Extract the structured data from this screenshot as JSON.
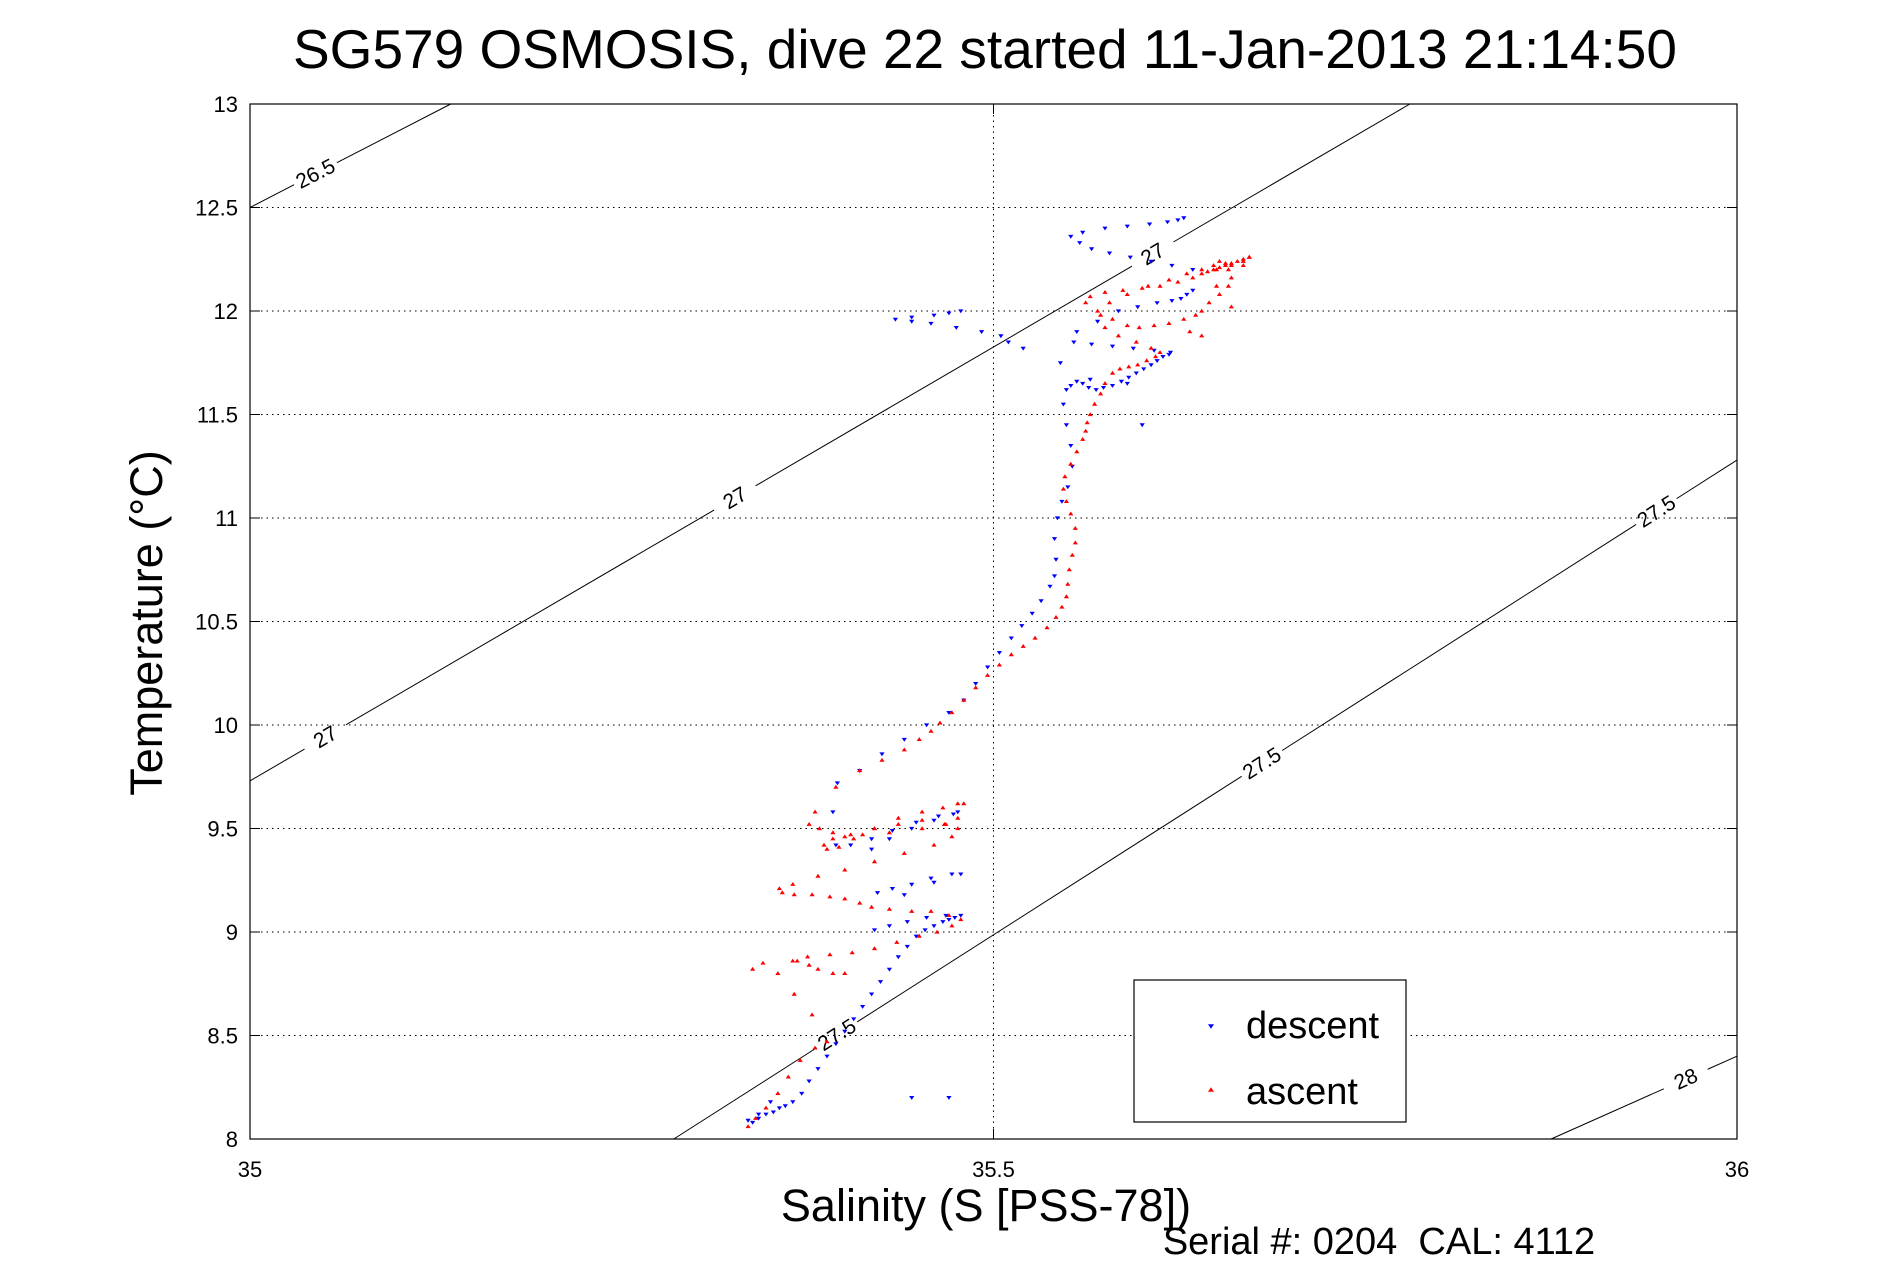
{
  "chart_data": {
    "type": "scatter",
    "title": "SG579 OSMOSIS, dive 22 started 11-Jan-2013 21:14:50",
    "xlabel": "Salinity (S [PSS-78])",
    "ylabel": "Temperature (°C)",
    "footer": "Serial #: 0204  CAL: 4112",
    "xlim": [
      35,
      36
    ],
    "ylim": [
      8,
      13
    ],
    "x_ticks": [
      35,
      35.5,
      36
    ],
    "x_tick_labels": [
      "35",
      "35.5",
      "36"
    ],
    "y_ticks": [
      8,
      8.5,
      9,
      9.5,
      10,
      10.5,
      11,
      11.5,
      12,
      12.5,
      13
    ],
    "y_tick_labels": [
      "8",
      "8.5",
      "9",
      "9.5",
      "10",
      "10.5",
      "11",
      "11.5",
      "12",
      "12.5",
      "13"
    ],
    "grid": true,
    "legend_position": "bottom-right",
    "colors": {
      "descent": "#0000ff",
      "ascent": "#ff0000",
      "contour": "#000000",
      "grid": "#000000"
    },
    "contours": [
      {
        "label": "26.5",
        "points": [
          [
            35.0,
            12.5
          ],
          [
            35.135,
            13.0
          ]
        ],
        "label_positions": [
          [
            35.045,
            12.65
          ]
        ]
      },
      {
        "label": "27",
        "points": [
          [
            35.0,
            9.73
          ],
          [
            35.78,
            13.0
          ]
        ],
        "label_positions": [
          [
            35.05,
            9.95
          ],
          [
            35.325,
            11.11
          ],
          [
            35.605,
            12.3
          ]
        ]
      },
      {
        "label": "27.5",
        "points": [
          [
            35.285,
            8.0
          ],
          [
            36.0,
            11.28
          ]
        ],
        "label_positions": [
          [
            35.395,
            8.5
          ],
          [
            35.68,
            9.82
          ],
          [
            35.945,
            11.04
          ]
        ]
      },
      {
        "label": "28",
        "points": [
          [
            35.875,
            8.0
          ],
          [
            36.0,
            8.4
          ]
        ],
        "label_positions": [
          [
            35.968,
            8.25
          ]
        ]
      }
    ],
    "series": [
      {
        "name": "descent",
        "marker": "triangle-down",
        "x": [
          35.338,
          35.342,
          35.347,
          35.352,
          35.356,
          35.36,
          35.365,
          35.371,
          35.376,
          35.382,
          35.388,
          35.394,
          35.4,
          35.406,
          35.412,
          35.418,
          35.424,
          35.43,
          35.436,
          35.442,
          35.448,
          35.454,
          35.46,
          35.466,
          35.47,
          35.474,
          35.478,
          35.468,
          35.455,
          35.442,
          35.43,
          35.42,
          35.44,
          35.46,
          35.478,
          35.472,
          35.458,
          35.445,
          35.432,
          35.422,
          35.418,
          35.43,
          35.445,
          35.46,
          35.473,
          35.476,
          35.463,
          35.448,
          35.432,
          35.418,
          35.404,
          35.394,
          35.392,
          35.395,
          35.41,
          35.425,
          35.44,
          35.455,
          35.47,
          35.48,
          35.488,
          35.496,
          35.504,
          35.512,
          35.519,
          35.526,
          35.532,
          35.538,
          35.541,
          35.542,
          35.541,
          35.543,
          35.546,
          35.55,
          35.553,
          35.552,
          35.549,
          35.547,
          35.549,
          35.552,
          35.556,
          35.56,
          35.564,
          35.569,
          35.574,
          35.58,
          35.586,
          35.591,
          35.596,
          35.601,
          35.606,
          35.61,
          35.614,
          35.618,
          35.619,
          35.608,
          35.594,
          35.58,
          35.566,
          35.554,
          35.556,
          35.57,
          35.584,
          35.597,
          35.61,
          35.62,
          35.626,
          35.63,
          35.634,
          35.634,
          35.62,
          35.606,
          35.592,
          35.578,
          35.566,
          35.558,
          35.552,
          35.56,
          35.575,
          35.59,
          35.605,
          35.617,
          35.624,
          35.628,
          35.6,
          35.59,
          35.565,
          35.545,
          35.52,
          35.51,
          35.505,
          35.492,
          35.475,
          35.458,
          35.445,
          35.434,
          35.445,
          35.46,
          35.47,
          35.478,
          35.35,
          35.342,
          35.335,
          35.445,
          35.47
        ],
        "y": [
          8.08,
          8.1,
          8.12,
          8.13,
          8.15,
          8.16,
          8.18,
          8.22,
          8.28,
          8.34,
          8.4,
          8.46,
          8.52,
          8.58,
          8.64,
          8.7,
          8.76,
          8.82,
          8.88,
          8.93,
          8.98,
          9.01,
          9.03,
          9.05,
          9.06,
          9.07,
          9.08,
          9.08,
          9.07,
          9.05,
          9.03,
          9.01,
          9.18,
          9.24,
          9.28,
          9.28,
          9.26,
          9.23,
          9.21,
          9.19,
          9.4,
          9.45,
          9.5,
          9.54,
          9.57,
          9.58,
          9.56,
          9.53,
          9.49,
          9.45,
          9.42,
          9.42,
          9.58,
          9.72,
          9.78,
          9.86,
          9.93,
          10.0,
          10.06,
          10.12,
          10.2,
          10.28,
          10.35,
          10.42,
          10.48,
          10.54,
          10.6,
          10.67,
          10.72,
          10.8,
          10.9,
          11.0,
          11.08,
          11.15,
          11.25,
          11.35,
          11.45,
          11.55,
          11.62,
          11.64,
          11.66,
          11.65,
          11.63,
          11.62,
          11.63,
          11.64,
          11.66,
          11.68,
          11.7,
          11.72,
          11.74,
          11.76,
          11.78,
          11.79,
          11.8,
          11.81,
          11.82,
          11.83,
          11.84,
          11.85,
          11.9,
          11.95,
          12.0,
          12.02,
          12.04,
          12.05,
          12.06,
          12.08,
          12.1,
          12.2,
          12.22,
          12.24,
          12.26,
          12.28,
          12.3,
          12.33,
          12.36,
          12.38,
          12.4,
          12.41,
          12.42,
          12.43,
          12.44,
          12.45,
          11.45,
          11.65,
          11.67,
          11.75,
          11.82,
          11.85,
          11.88,
          11.9,
          11.92,
          11.94,
          11.95,
          11.96,
          11.97,
          11.98,
          11.99,
          12.0,
          8.18,
          8.12,
          8.09,
          8.2,
          8.2
        ]
      },
      {
        "name": "ascent",
        "marker": "triangle-up",
        "x": [
          35.335,
          35.34,
          35.347,
          35.355,
          35.362,
          35.37,
          35.38,
          35.388,
          35.378,
          35.366,
          35.355,
          35.345,
          35.338,
          35.4,
          35.392,
          35.382,
          35.376,
          35.368,
          35.365,
          35.375,
          35.39,
          35.405,
          35.42,
          35.435,
          35.45,
          35.462,
          35.472,
          35.478,
          35.47,
          35.458,
          35.445,
          35.43,
          35.418,
          35.41,
          35.4,
          35.39,
          35.378,
          35.366,
          35.358,
          35.356,
          35.365,
          35.382,
          35.4,
          35.42,
          35.44,
          35.46,
          35.472,
          35.476,
          35.467,
          35.452,
          35.436,
          35.42,
          35.404,
          35.392,
          35.386,
          35.388,
          35.396,
          35.406,
          35.42,
          35.436,
          35.452,
          35.466,
          35.476,
          35.48,
          35.476,
          35.468,
          35.452,
          35.43,
          35.412,
          35.4,
          35.392,
          35.383,
          35.376,
          35.38,
          35.394,
          35.41,
          35.425,
          35.44,
          35.45,
          35.458,
          35.464,
          35.472,
          35.48,
          35.488,
          35.496,
          35.504,
          35.512,
          35.52,
          35.528,
          35.536,
          35.542,
          35.546,
          35.549,
          35.55,
          35.551,
          35.553,
          35.555,
          35.555,
          35.552,
          35.549,
          35.547,
          35.548,
          35.552,
          35.556,
          35.56,
          35.562,
          35.563,
          35.565,
          35.568,
          35.572,
          35.575,
          35.58,
          35.585,
          35.591,
          35.597,
          35.603,
          35.609,
          35.612,
          35.606,
          35.596,
          35.584,
          35.575,
          35.572,
          35.578,
          35.59,
          35.604,
          35.618,
          35.63,
          35.64,
          35.648,
          35.652,
          35.656,
          35.658,
          35.66,
          35.658,
          35.652,
          35.645,
          35.64,
          35.636,
          35.628,
          35.618,
          35.608,
          35.598,
          35.59,
          35.58,
          35.57,
          35.562,
          35.565,
          35.575,
          35.587,
          35.6,
          35.612,
          35.624,
          35.634,
          35.64,
          35.644,
          35.648,
          35.652,
          35.656,
          35.66,
          35.664,
          35.668,
          35.672,
          35.668,
          35.66,
          35.65,
          35.66,
          35.64,
          35.632,
          35.65,
          35.668,
          35.672
        ],
        "y": [
          8.06,
          8.1,
          8.15,
          8.22,
          8.3,
          8.38,
          8.44,
          8.47,
          8.6,
          8.7,
          8.8,
          8.85,
          8.82,
          8.8,
          8.8,
          8.82,
          8.84,
          8.86,
          8.86,
          8.88,
          8.89,
          8.9,
          8.92,
          8.95,
          8.98,
          9.0,
          9.03,
          9.06,
          9.08,
          9.1,
          9.1,
          9.11,
          9.12,
          9.14,
          9.16,
          9.17,
          9.18,
          9.18,
          9.19,
          9.21,
          9.23,
          9.27,
          9.3,
          9.34,
          9.38,
          9.42,
          9.46,
          9.5,
          9.52,
          9.54,
          9.52,
          9.5,
          9.47,
          9.45,
          9.42,
          9.4,
          9.41,
          9.45,
          9.5,
          9.55,
          9.58,
          9.6,
          9.62,
          9.62,
          9.55,
          9.52,
          9.5,
          9.48,
          9.47,
          9.46,
          9.48,
          9.5,
          9.52,
          9.58,
          9.7,
          9.78,
          9.83,
          9.88,
          9.93,
          9.97,
          10.01,
          10.06,
          10.12,
          10.18,
          10.24,
          10.29,
          10.34,
          10.38,
          10.42,
          10.47,
          10.52,
          10.57,
          10.62,
          10.68,
          10.75,
          10.82,
          10.88,
          10.95,
          11.02,
          11.08,
          11.14,
          11.2,
          11.26,
          11.32,
          11.38,
          11.42,
          11.46,
          11.5,
          11.55,
          11.6,
          11.65,
          11.7,
          11.72,
          11.73,
          11.74,
          11.76,
          11.78,
          11.8,
          11.82,
          11.85,
          11.88,
          11.92,
          11.98,
          12.04,
          12.08,
          12.12,
          12.15,
          12.18,
          12.2,
          12.22,
          12.24,
          12.23,
          12.2,
          12.16,
          12.12,
          12.08,
          12.04,
          12.0,
          11.98,
          11.96,
          11.94,
          11.93,
          11.92,
          11.93,
          11.96,
          12.0,
          12.04,
          12.07,
          12.09,
          12.1,
          12.11,
          12.12,
          12.14,
          12.16,
          12.18,
          12.19,
          12.2,
          12.21,
          12.22,
          12.23,
          12.24,
          12.25,
          12.26,
          12.24,
          12.22,
          12.2,
          12.02,
          11.88,
          11.9,
          12.12,
          12.22,
          12.26
        ]
      }
    ]
  }
}
